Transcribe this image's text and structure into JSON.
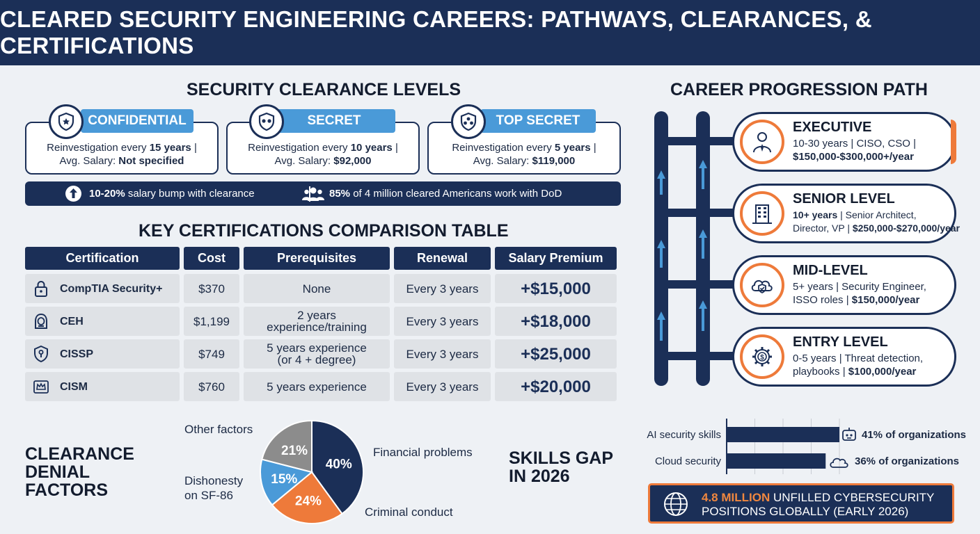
{
  "title": "CLEARED SECURITY ENGINEERING CAREERS: PATHWAYS, CLEARANCES, & CERTIFICATIONS",
  "clearance": {
    "heading": "SECURITY CLEARANCE LEVELS",
    "levels": [
      {
        "name": "CONFIDENTIAL",
        "line1_prefix": "Reinvestigation every ",
        "line1_bold": "15 years",
        "line1_suffix": " |",
        "line2_prefix": "Avg. Salary: ",
        "line2_bold": "Not specified",
        "icon": "shield-star-icon"
      },
      {
        "name": "SECRET",
        "line1_prefix": "Reinvestigation every ",
        "line1_bold": "10 years",
        "line1_suffix": " |",
        "line2_prefix": "Avg. Salary: ",
        "line2_bold": "$92,000",
        "icon": "shield-two-stars-icon"
      },
      {
        "name": "TOP SECRET",
        "line1_prefix": "Reinvestigation every ",
        "line1_bold": "5 years",
        "line1_suffix": " |",
        "line2_prefix": "Avg. Salary: ",
        "line2_bold": "$119,000",
        "icon": "shield-three-stars-icon"
      }
    ],
    "stat1_bold": "10-20%",
    "stat1_rest": " salary bump with clearance",
    "stat2_bold": "85%",
    "stat2_rest": " of 4 million cleared Americans work with DoD"
  },
  "certs": {
    "heading": "KEY CERTIFICATIONS COMPARISON TABLE",
    "columns": [
      "Certification",
      "Cost",
      "Prerequisites",
      "Renewal",
      "Salary Premium"
    ],
    "rows": [
      {
        "name": "CompTIA Security+",
        "cost": "$370",
        "prereq1": "None",
        "prereq2": "",
        "renewal": "Every 3 years",
        "premium": "+$15,000",
        "icon": "padlock-icon"
      },
      {
        "name": "CEH",
        "cost": "$1,199",
        "prereq1": "2 years",
        "prereq2": "experience/training",
        "renewal": "Every 3 years",
        "premium": "+$18,000",
        "icon": "hacker-icon"
      },
      {
        "name": "CISSP",
        "cost": "$749",
        "prereq1": "5 years experience",
        "prereq2": "(or 4 + degree)",
        "renewal": "Every 3 years",
        "premium": "+$25,000",
        "icon": "shield-keyhole-icon"
      },
      {
        "name": "CISM",
        "cost": "$760",
        "prereq1": "5 years experience",
        "prereq2": "",
        "renewal": "Every 3 years",
        "premium": "+$20,000",
        "icon": "crown-icon"
      }
    ]
  },
  "career": {
    "heading": "CAREER PROGRESSION PATH",
    "levels": [
      {
        "title": "EXECUTIVE",
        "line1": "10-30 years | CISO, CSO |",
        "line2": "$150,000-$300,000+/year",
        "icon": "executive-person-icon"
      },
      {
        "title": "SENIOR LEVEL",
        "line1_bold": "10+ years",
        "line1_rest": " | Senior Architect,",
        "line2": "Director, VP | ",
        "line2_bold": "$250,000-$270,000/year",
        "icon": "office-building-icon"
      },
      {
        "title": "MID-LEVEL",
        "line1": "5+ years | Security Engineer,",
        "line2": "ISSO roles | ",
        "line2_bold": "$150,000/year",
        "icon": "cloud-shield-icon"
      },
      {
        "title": "ENTRY LEVEL",
        "line1": "0-5 years | Threat detection,",
        "line2": "playbooks | ",
        "line2_bold": "$100,000/year",
        "icon": "gear-dollar-icon"
      }
    ]
  },
  "denial": {
    "heading": "CLEARANCE DENIAL FACTORS",
    "heading_lines": [
      "CLEARANCE",
      "DENIAL",
      "FACTORS"
    ]
  },
  "skills": {
    "heading_lines": [
      "SKILLS GAP",
      "IN 2026"
    ]
  },
  "banner": {
    "highlight": "4.8 MILLION",
    "rest1": " UNFILLED CYBERSECURITY",
    "line2": "POSITIONS GLOBALLY (EARLY 2026)",
    "icon": "globe-icon"
  },
  "chart_data": [
    {
      "type": "pie",
      "title": "",
      "slices": [
        {
          "label": "Financial problems",
          "value": 40,
          "display": "40%",
          "color": "#1b2f57"
        },
        {
          "label": "Criminal conduct",
          "value": 24,
          "display": "24%",
          "color": "#ee7a3a"
        },
        {
          "label": "Dishonesty on SF-86",
          "value": 15,
          "display": "15%",
          "color": "#4a9ad8"
        },
        {
          "label": "Other factors",
          "value": 21,
          "display": "21%",
          "color": "#8c8c8c"
        }
      ]
    },
    {
      "type": "bar",
      "orientation": "horizontal",
      "title": "",
      "categories": [
        "AI security skills",
        "Cloud security"
      ],
      "values": [
        41,
        36
      ],
      "value_labels": [
        "41% of organizations",
        "36% of organizations"
      ],
      "xlim": [
        0,
        41
      ],
      "grid": true
    }
  ]
}
